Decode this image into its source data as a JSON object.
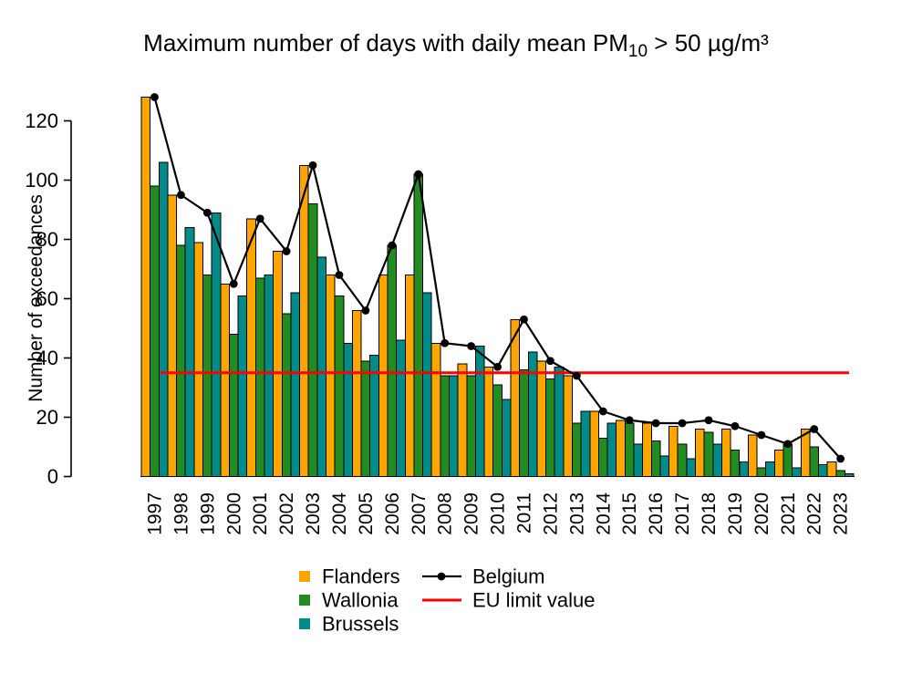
{
  "title": {
    "prefix": "Maximum number of days with daily mean PM",
    "subscript": "10",
    "suffix": " > 50 µg/m³"
  },
  "y_axis_label": "Number of exceedances",
  "legend": {
    "flanders": "Flanders",
    "wallonia": "Wallonia",
    "brussels": "Brussels",
    "belgium": "Belgium",
    "eu_limit": "EU limit value"
  },
  "colors": {
    "flanders": "#FFA500",
    "wallonia": "#228B22",
    "brussels": "#008B8B",
    "belgium": "#000000",
    "eu_limit": "#FF0000",
    "bar_border": "#000000"
  },
  "chart_data": {
    "type": "bar",
    "title": "Maximum number of days with daily mean PM10 > 50 µg/m³",
    "xlabel": "",
    "ylabel": "Number of exceedances",
    "categories": [
      "1997",
      "1998",
      "1999",
      "2000",
      "2001",
      "2002",
      "2003",
      "2004",
      "2005",
      "2006",
      "2007",
      "2008",
      "2009",
      "2010",
      "2011",
      "2012",
      "2013",
      "2014",
      "2015",
      "2016",
      "2017",
      "2018",
      "2019",
      "2020",
      "2021",
      "2022",
      "2023"
    ],
    "series": [
      {
        "name": "Flanders",
        "type": "bar",
        "color": "#FFA500",
        "values": [
          128,
          95,
          79,
          65,
          87,
          76,
          105,
          68,
          56,
          68,
          68,
          45,
          38,
          37,
          53,
          39,
          34,
          22,
          19,
          18,
          17,
          16,
          16,
          14,
          9,
          16,
          5
        ]
      },
      {
        "name": "Wallonia",
        "type": "bar",
        "color": "#228B22",
        "values": [
          98,
          78,
          68,
          48,
          67,
          55,
          92,
          61,
          39,
          78,
          102,
          34,
          34,
          31,
          36,
          33,
          18,
          13,
          18,
          12,
          11,
          15,
          9,
          3,
          11,
          10,
          2
        ]
      },
      {
        "name": "Brussels",
        "type": "bar",
        "color": "#008B8B",
        "values": [
          106,
          84,
          89,
          61,
          68,
          62,
          74,
          45,
          41,
          46,
          62,
          34,
          44,
          26,
          42,
          37,
          22,
          18,
          11,
          7,
          6,
          11,
          5,
          5,
          3,
          4,
          1
        ]
      },
      {
        "name": "Belgium",
        "type": "line",
        "color": "#000000",
        "values": [
          128,
          95,
          89,
          65,
          87,
          76,
          105,
          68,
          56,
          78,
          102,
          45,
          44,
          37,
          53,
          39,
          34,
          22,
          19,
          18,
          18,
          19,
          17,
          14,
          11,
          16,
          6
        ]
      }
    ],
    "reference_line": {
      "label": "EU limit value",
      "value": 35,
      "color": "#FF0000"
    },
    "yticks": [
      0,
      20,
      40,
      60,
      80,
      100,
      120
    ],
    "ylim": [
      0,
      130
    ],
    "grid": false,
    "legend_position": "bottom"
  }
}
